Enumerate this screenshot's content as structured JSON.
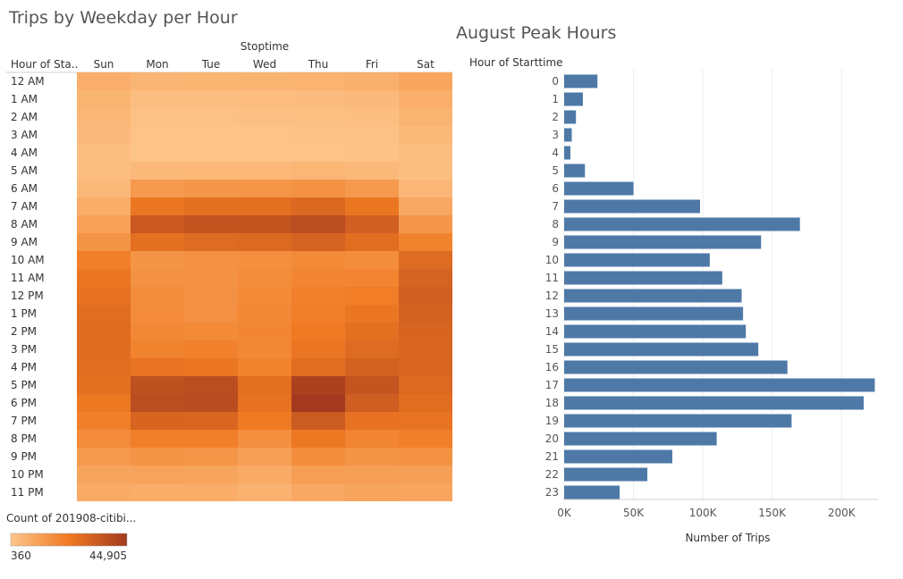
{
  "chart_data": [
    {
      "type": "heatmap",
      "title": "Trips by Weekday per Hour",
      "column_header": "Stoptime",
      "row_header": "Hour of Sta..",
      "columns": [
        "Sun",
        "Mon",
        "Tue",
        "Wed",
        "Thu",
        "Fri",
        "Sat"
      ],
      "rows": [
        "12 AM",
        "1 AM",
        "2 AM",
        "3 AM",
        "4 AM",
        "5 AM",
        "6 AM",
        "7 AM",
        "8 AM",
        "9 AM",
        "10 AM",
        "11 AM",
        "12 PM",
        "1 PM",
        "2 PM",
        "3 PM",
        "4 PM",
        "5 PM",
        "6 PM",
        "7 PM",
        "8 PM",
        "9 PM",
        "10 PM",
        "11 PM"
      ],
      "values": [
        [
          7000,
          5000,
          5200,
          5500,
          5800,
          6500,
          9500
        ],
        [
          5500,
          2500,
          2600,
          2700,
          2900,
          3500,
          7000
        ],
        [
          4500,
          1500,
          1600,
          1700,
          1900,
          2300,
          5500
        ],
        [
          3500,
          1000,
          1000,
          1100,
          1200,
          1500,
          4000
        ],
        [
          2500,
          800,
          800,
          900,
          1000,
          1200,
          2500
        ],
        [
          2500,
          4000,
          4200,
          4300,
          4800,
          4000,
          2000
        ],
        [
          4000,
          13000,
          14000,
          14500,
          15500,
          13000,
          4500
        ],
        [
          7500,
          24000,
          26000,
          26500,
          29000,
          24000,
          9000
        ],
        [
          11000,
          34000,
          36000,
          35500,
          38000,
          32000,
          14000
        ],
        [
          15000,
          26000,
          28000,
          28500,
          30500,
          27000,
          20000
        ],
        [
          21000,
          15000,
          16000,
          16500,
          18000,
          17000,
          28000
        ],
        [
          24000,
          15500,
          15500,
          17000,
          19000,
          19500,
          30500
        ],
        [
          25500,
          17000,
          16000,
          18000,
          20500,
          21500,
          32000
        ],
        [
          27000,
          17500,
          16000,
          18500,
          21000,
          24000,
          31000
        ],
        [
          27500,
          18500,
          18000,
          19000,
          22500,
          26500,
          30000
        ],
        [
          27500,
          20000,
          20500,
          18500,
          24500,
          28000,
          29500
        ],
        [
          27000,
          25000,
          24500,
          20000,
          27000,
          31000,
          29500
        ],
        [
          26000,
          37000,
          38000,
          26500,
          42500,
          35500,
          28500
        ],
        [
          23500,
          38000,
          38500,
          25500,
          44905,
          32500,
          27000
        ],
        [
          21000,
          30000,
          29500,
          22500,
          33500,
          25500,
          25000
        ],
        [
          17500,
          21000,
          21000,
          16500,
          23500,
          19500,
          21000
        ],
        [
          13000,
          15000,
          14500,
          11500,
          17000,
          15000,
          15500
        ],
        [
          10000,
          10500,
          10000,
          8000,
          12000,
          12000,
          11500
        ],
        [
          8000,
          7500,
          7500,
          6000,
          9000,
          10000,
          9500
        ]
      ],
      "legend_title": "Count of 201908-citibi...",
      "legend_min_label": "360",
      "legend_max_label": "44,905",
      "color_low": "#fdc58a",
      "color_mid": "#f07a22",
      "color_high": "#a33a1f",
      "value_min": 360,
      "value_max": 44905
    },
    {
      "type": "bar",
      "orientation": "horizontal",
      "title": "August Peak Hours",
      "ylabel": "Hour of Starttime",
      "xlabel": "Number of Trips",
      "categories": [
        "0",
        "1",
        "2",
        "3",
        "4",
        "5",
        "6",
        "7",
        "8",
        "9",
        "10",
        "11",
        "12",
        "13",
        "14",
        "15",
        "16",
        "17",
        "18",
        "19",
        "20",
        "21",
        "22",
        "23"
      ],
      "values": [
        24000,
        13500,
        8500,
        5500,
        4500,
        15000,
        50000,
        98000,
        170000,
        142000,
        105000,
        114000,
        128000,
        129000,
        131000,
        140000,
        161000,
        224000,
        216000,
        164000,
        110000,
        78000,
        60000,
        40000
      ],
      "xlim": [
        0,
        225000
      ],
      "xticks": [
        0,
        50000,
        100000,
        150000,
        200000
      ],
      "xtick_labels": [
        "0K",
        "50K",
        "100K",
        "150K",
        "200K"
      ],
      "bar_color": "#4e79a7",
      "grid": true
    }
  ]
}
